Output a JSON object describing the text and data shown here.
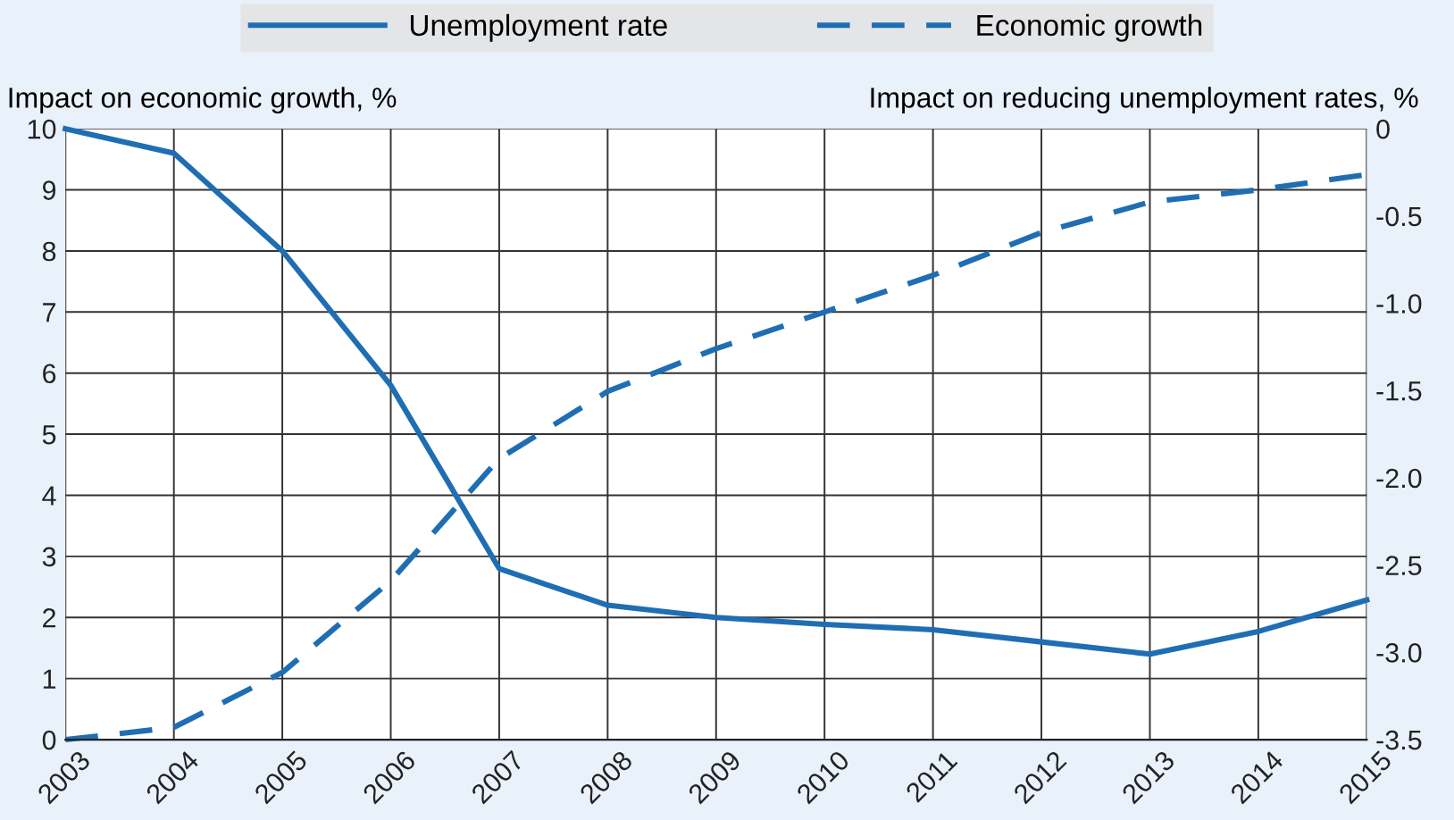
{
  "chart_data": {
    "type": "line",
    "ylabel": "Impact on economic growth, %",
    "y2label": "Impact on reducing unemployment rates, %",
    "categories": [
      "2003",
      "2004",
      "2005",
      "2006",
      "2007",
      "2008",
      "2009",
      "2010",
      "2011",
      "2012",
      "2013",
      "2014",
      "2015"
    ],
    "series": [
      {
        "name": "Unemployment rate",
        "color": "#1f6eb3",
        "axis": "y2",
        "line_style": "solid",
        "values": [
          0,
          -0.14,
          -0.7,
          -1.47,
          -2.52,
          -2.73,
          -2.8,
          -2.84,
          -2.87,
          -2.94,
          -3.01,
          -2.88,
          -2.7
        ]
      },
      {
        "name": "Economic growth",
        "color": "#1f6eb3",
        "line_style": "dashed",
        "values": [
          0,
          0.2,
          1.1,
          2.6,
          4.6,
          5.7,
          6.4,
          7.0,
          7.6,
          8.3,
          8.8,
          9.0,
          9.25
        ]
      }
    ],
    "ylim": [
      0,
      10
    ],
    "yticks": [
      0,
      1,
      2,
      3,
      4,
      5,
      6,
      7,
      8,
      9,
      10
    ],
    "y2lim": [
      -3.5,
      0
    ],
    "y2ticks": [
      {
        "value": -3.5,
        "label": "-3.5"
      },
      {
        "value": -3.0,
        "label": "-3.0"
      },
      {
        "value": -2.5,
        "label": "-2.5"
      },
      {
        "value": -2.0,
        "label": "-2.0"
      },
      {
        "value": -1.5,
        "label": "-1.5"
      },
      {
        "value": -1.0,
        "label": "-1.0"
      },
      {
        "value": -0.5,
        "label": "-0.5"
      },
      {
        "value": 0,
        "label": "0"
      }
    ],
    "grid": true,
    "legend": "top",
    "marker": "none"
  }
}
